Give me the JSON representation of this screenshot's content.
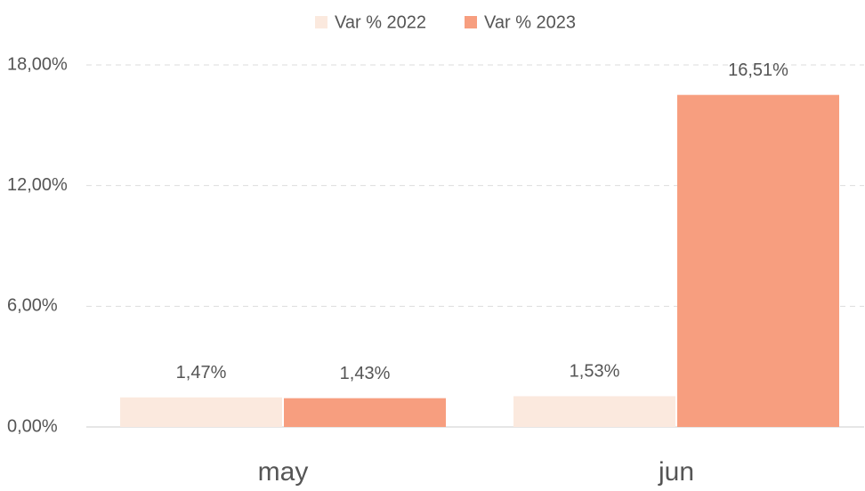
{
  "chart_data": {
    "type": "bar",
    "categories": [
      "may",
      "jun"
    ],
    "series": [
      {
        "name": "Var % 2022",
        "color": "#fbe9de",
        "values": [
          1.47,
          1.53
        ],
        "value_labels": [
          "1,47%",
          "1,53%"
        ]
      },
      {
        "name": "Var % 2023",
        "color": "#f79e7f",
        "values": [
          1.43,
          16.51
        ],
        "value_labels": [
          "1,43%",
          "16,51%"
        ]
      }
    ],
    "ylim": [
      0,
      18
    ],
    "yticks": [
      {
        "value": 0,
        "label": "0,00%"
      },
      {
        "value": 6,
        "label": "6,00%"
      },
      {
        "value": 12,
        "label": "12,00%"
      },
      {
        "value": 18,
        "label": "18,00%"
      }
    ],
    "grid": true,
    "legend": "top"
  }
}
